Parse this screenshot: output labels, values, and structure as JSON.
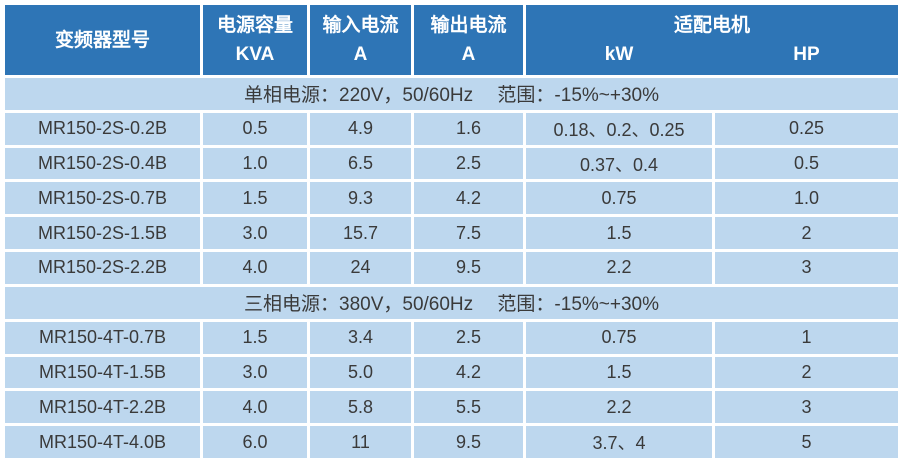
{
  "colors": {
    "header_bg": "#2E75B6",
    "row_bg": "#BDD7EE",
    "gridline": "#FFFFFF",
    "header_text": "#FFFFFF",
    "body_text": "#3A3A3A"
  },
  "table": {
    "header": {
      "model": "变频器型号",
      "capacity": {
        "line1": "电源容量",
        "line2": "KVA"
      },
      "input_current": {
        "line1": "输入电流",
        "line2": "A"
      },
      "output_current": {
        "line1": "输出电流",
        "line2": "A"
      },
      "motor": {
        "label": "适配电机",
        "sub_kw": "kW",
        "sub_hp": "HP"
      }
    },
    "sections": [
      {
        "title": "单相电源：220V，50/60Hz　 范围：-15%~+30%",
        "rows": [
          [
            "MR150-2S-0.2B",
            "0.5",
            "4.9",
            "1.6",
            "0.18、0.2、0.25",
            "0.25"
          ],
          [
            "MR150-2S-0.4B",
            "1.0",
            "6.5",
            "2.5",
            "0.37、0.4",
            "0.5"
          ],
          [
            "MR150-2S-0.7B",
            "1.5",
            "9.3",
            "4.2",
            "0.75",
            "1.0"
          ],
          [
            "MR150-2S-1.5B",
            "3.0",
            "15.7",
            "7.5",
            "1.5",
            "2"
          ],
          [
            "MR150-2S-2.2B",
            "4.0",
            "24",
            "9.5",
            "2.2",
            "3"
          ]
        ]
      },
      {
        "title": "三相电源：380V，50/60Hz　 范围：-15%~+30%",
        "rows": [
          [
            "MR150-4T-0.7B",
            "1.5",
            "3.4",
            "2.5",
            "0.75",
            "1"
          ],
          [
            "MR150-4T-1.5B",
            "3.0",
            "5.0",
            "4.2",
            "1.5",
            "2"
          ],
          [
            "MR150-4T-2.2B",
            "4.0",
            "5.8",
            "5.5",
            "2.2",
            "3"
          ],
          [
            "MR150-4T-4.0B",
            "6.0",
            "11",
            "9.5",
            "3.7、4",
            "5"
          ]
        ]
      }
    ]
  }
}
